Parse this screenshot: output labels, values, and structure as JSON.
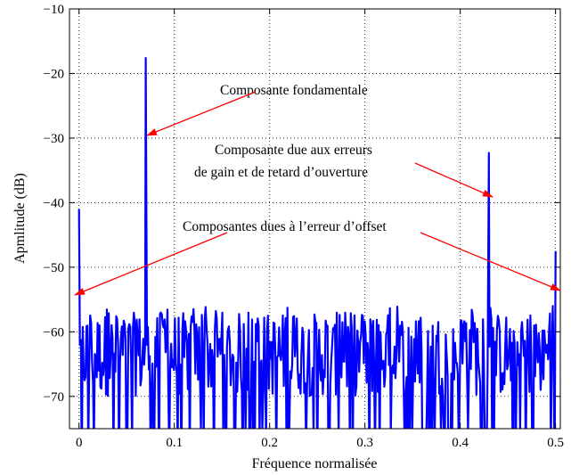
{
  "chart_data": {
    "type": "line",
    "title": "",
    "xlabel": "Fréquence normalisée",
    "ylabel": "Apmlitude (dB)",
    "xlim": [
      -0.01,
      0.505
    ],
    "ylim": [
      -75,
      -10
    ],
    "xticks": [
      0,
      0.1,
      0.2,
      0.3,
      0.4,
      0.5
    ],
    "xtick_labels": [
      "0",
      "0.1",
      "0.2",
      "0.3",
      "0.4",
      "0.5"
    ],
    "yticks": [
      -70,
      -60,
      -50,
      -40,
      -30,
      -20,
      -10
    ],
    "ytick_labels": [
      "−70",
      "−60",
      "−50",
      "−40",
      "−30",
      "−20",
      "−10"
    ],
    "grid": true,
    "grid_style": "dotted",
    "series": [
      {
        "color": "#0000ff",
        "noise_floor_db": [
          -75,
          -56
        ],
        "peaks": [
          {
            "x": 0.0,
            "y": -41
          },
          {
            "x": 0.07,
            "y": -17.6
          },
          {
            "x": 0.43,
            "y": -32.3
          },
          {
            "x": 0.5,
            "y": -47.5
          }
        ]
      }
    ],
    "annotations": [
      {
        "text": "Composante fondamentale",
        "arrow_to": [
          0.07,
          -29.5
        ],
        "color": "#ff0000"
      },
      {
        "text": "Composante due aux erreurs",
        "text2": "de gain et de retard d’ouverture",
        "arrow_to": [
          0.43,
          -39
        ],
        "color": "#ff0000"
      },
      {
        "text": "Composantes dues à l’erreur d’offset",
        "arrow_to": [
          [
            0.002,
            -54.5
          ],
          [
            0.5,
            -53.5
          ]
        ],
        "color": "#ff0000"
      }
    ]
  }
}
